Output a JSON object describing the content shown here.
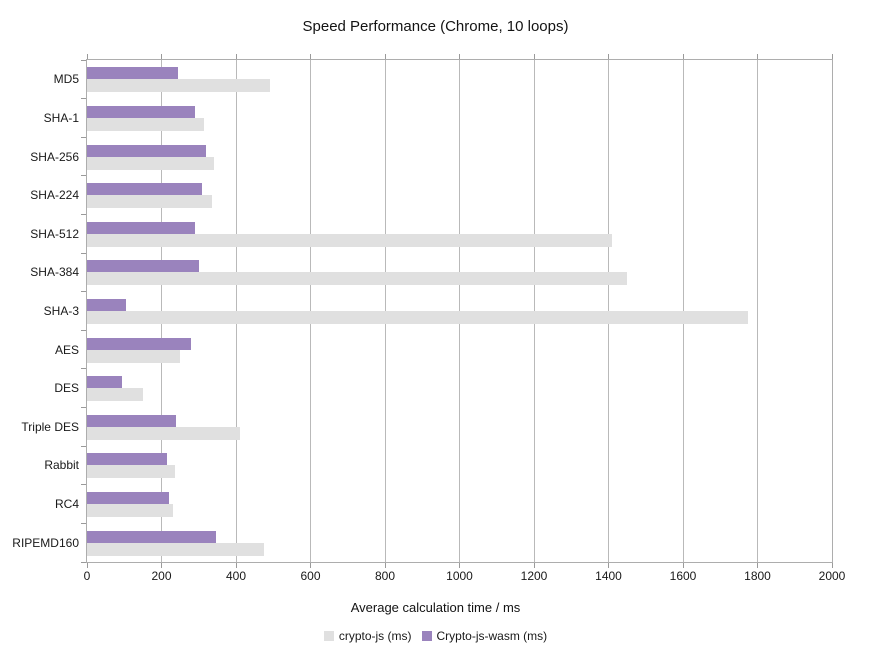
{
  "chart_data": {
    "type": "bar",
    "orientation": "horizontal",
    "title": "Speed Performance (Chrome, 10 loops)",
    "xlabel": "Average calculation time / ms",
    "xlim": [
      0,
      2000
    ],
    "xticks": [
      0,
      200,
      400,
      600,
      800,
      1000,
      1200,
      1400,
      1600,
      1800,
      2000
    ],
    "grid": true,
    "legend_position": "bottom",
    "categories": [
      "MD5",
      "SHA-1",
      "SHA-256",
      "SHA-224",
      "SHA-512",
      "SHA-384",
      "SHA-3",
      "AES",
      "DES",
      "Triple DES",
      "Rabbit",
      "RC4",
      "RIPEMD160"
    ],
    "series": [
      {
        "name": "crypto-js (ms)",
        "color": "#e0e0e0",
        "values": [
          490,
          315,
          340,
          335,
          1410,
          1450,
          1775,
          250,
          150,
          410,
          235,
          230,
          475
        ]
      },
      {
        "name": "Crypto-js-wasm (ms)",
        "color": "#9a83bd",
        "values": [
          245,
          290,
          320,
          310,
          290,
          300,
          105,
          280,
          95,
          240,
          215,
          220,
          345
        ]
      }
    ],
    "colors": {
      "grid": "#b9b9b9",
      "axis": "#adadad",
      "text": "#191919"
    }
  }
}
